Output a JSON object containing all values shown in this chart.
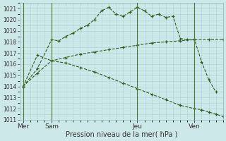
{
  "xlabel": "Pression niveau de la mer( hPa )",
  "ylim": [
    1011,
    1021.5
  ],
  "yticks": [
    1011,
    1012,
    1013,
    1014,
    1015,
    1016,
    1017,
    1018,
    1019,
    1020,
    1021
  ],
  "background_color": "#cde8e8",
  "grid_color": "#b0d8d8",
  "line_color": "#2d5c1e",
  "vline_color": "#4a7a30",
  "xtick_positions": [
    0,
    8,
    32,
    48
  ],
  "xtick_labels": [
    "Mer",
    "Sam",
    "Jeu",
    "Ven"
  ],
  "xlim": [
    -1,
    56
  ],
  "vline_x": [
    0,
    8,
    32,
    48
  ],
  "line1_x": [
    0,
    4,
    8,
    10,
    12,
    14,
    16,
    18,
    20,
    22,
    24,
    26,
    28,
    30,
    32,
    34,
    36,
    38,
    40,
    42,
    44,
    46,
    48,
    50,
    52,
    54
  ],
  "line1_y": [
    1014.0,
    1015.6,
    1018.2,
    1018.1,
    1018.5,
    1018.8,
    1019.2,
    1019.5,
    1020.0,
    1020.8,
    1021.1,
    1020.5,
    1020.3,
    1020.7,
    1021.1,
    1020.8,
    1020.3,
    1020.5,
    1020.2,
    1020.3,
    1018.3,
    1018.2,
    1018.2,
    1016.2,
    1014.6,
    1013.5
  ],
  "line2_x": [
    0,
    4,
    8,
    12,
    16,
    20,
    24,
    28,
    32,
    36,
    40,
    44,
    48,
    52,
    56
  ],
  "line2_y": [
    1014.0,
    1015.2,
    1016.3,
    1016.6,
    1016.9,
    1017.1,
    1017.3,
    1017.5,
    1017.7,
    1017.9,
    1018.0,
    1018.1,
    1018.2,
    1018.2,
    1018.2
  ],
  "line3_x": [
    0,
    4,
    8,
    12,
    16,
    20,
    24,
    28,
    32,
    36,
    40,
    44,
    48,
    50,
    52,
    54,
    56
  ],
  "line3_y": [
    1014.0,
    1016.8,
    1016.3,
    1016.1,
    1015.7,
    1015.3,
    1014.8,
    1014.3,
    1013.8,
    1013.3,
    1012.8,
    1012.3,
    1012.0,
    1011.9,
    1011.7,
    1011.5,
    1011.3
  ]
}
